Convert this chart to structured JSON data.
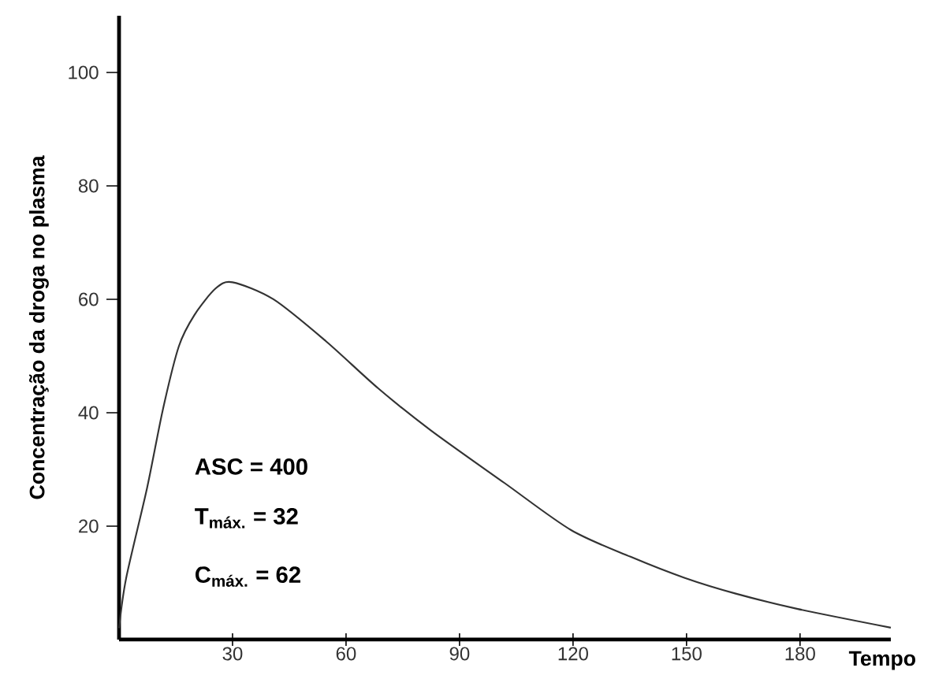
{
  "chart_data": {
    "type": "line",
    "xlabel": "Tempo",
    "ylabel": "Concentração da droga no plasma",
    "annotations": [
      "ASC = 400",
      "T$_{máx.}$ = 32",
      "C$_{máx.}$  = 62"
    ],
    "x": [
      0,
      1.9,
      7.4,
      11.6,
      15.8,
      19.9,
      25.5,
      30,
      40.8,
      54.7,
      68.5,
      82.4,
      101.9,
      119.5,
      135.2,
      149.4,
      163,
      179.4,
      204
    ],
    "series": [
      {
        "color": "#333333",
        "values": [
          2,
          10.9,
          26.7,
          40.6,
          51.7,
          57.2,
          61.9,
          63,
          60,
          52.6,
          44.3,
          36.9,
          27.6,
          19.3,
          14.6,
          10.9,
          8.1,
          5.4,
          2.1
        ]
      }
    ],
    "xlim": [
      0,
      204
    ],
    "ylim": [
      0,
      110
    ],
    "xticks": [
      30,
      60,
      90,
      120,
      150,
      180
    ],
    "yticks": [
      20,
      40,
      60,
      80,
      100
    ],
    "grid": false,
    "marker": "none",
    "line_style": "solid"
  }
}
